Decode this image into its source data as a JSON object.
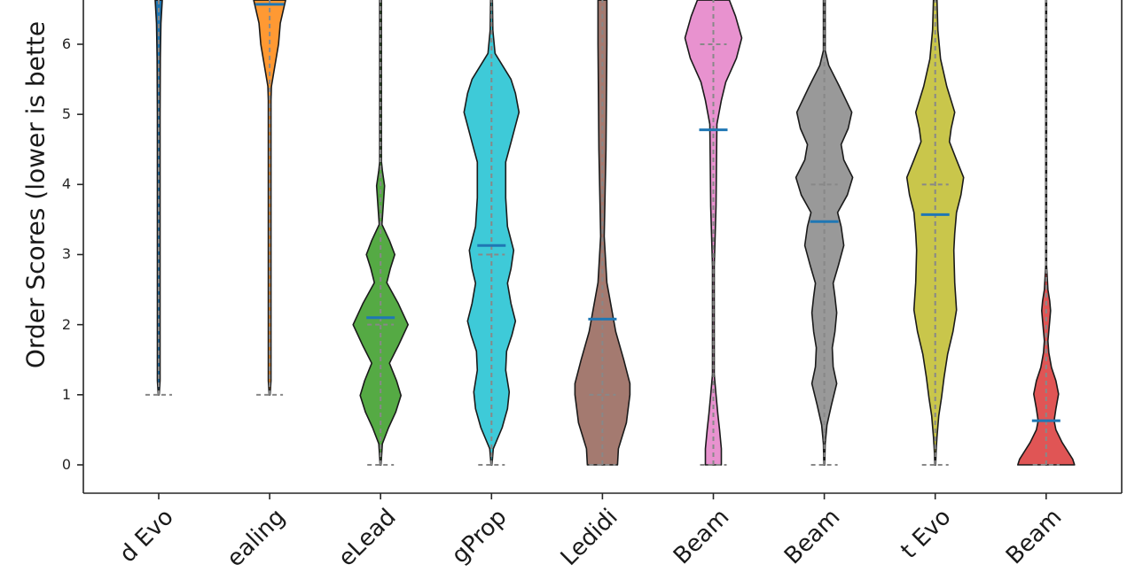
{
  "chart_data": {
    "type": "violin",
    "title": "",
    "ylabel": "Order Scores (lower is bette",
    "xlabel": "",
    "ylim": [
      -0.4,
      6.63
    ],
    "yticks": [
      0,
      1,
      2,
      3,
      4,
      5,
      6
    ],
    "grid": false,
    "legend": null,
    "categories": [
      "d Evo",
      "ealing",
      "eLead",
      "gProp",
      "Ledidi",
      "Beam",
      "Beam",
      "t Evo",
      "Beam"
    ],
    "series": [
      {
        "name": "d Evo",
        "color": "#1f77b4",
        "min": 1,
        "median": 6.7,
        "mean": 6.8,
        "profile": [
          [
            1,
            0.5
          ],
          [
            1.2,
            1.5
          ],
          [
            3,
            1.5
          ],
          [
            5,
            1.5
          ],
          [
            5.8,
            1.8
          ],
          [
            6.3,
            2.5
          ],
          [
            6.63,
            4
          ]
        ]
      },
      {
        "name": "ealing",
        "color": "#ff9933",
        "min": 1,
        "median": 6.7,
        "mean": 6.57,
        "profile": [
          [
            1,
            0.5
          ],
          [
            1.2,
            1.5
          ],
          [
            3,
            1.5
          ],
          [
            5.2,
            1.5
          ],
          [
            5.4,
            2
          ],
          [
            5.7,
            6
          ],
          [
            6.0,
            10
          ],
          [
            6.3,
            12
          ],
          [
            6.63,
            18
          ]
        ]
      },
      {
        "name": "eLead",
        "color": "#55aa44",
        "min": 0,
        "median": 2.0,
        "mean": 2.1,
        "profile": [
          [
            0,
            0.5
          ],
          [
            0.3,
            2
          ],
          [
            0.53,
            9
          ],
          [
            0.75,
            17
          ],
          [
            0.99,
            23
          ],
          [
            1.2,
            18
          ],
          [
            1.45,
            10
          ],
          [
            1.7,
            20
          ],
          [
            2.0,
            31
          ],
          [
            2.3,
            20
          ],
          [
            2.6,
            7
          ],
          [
            2.8,
            11
          ],
          [
            3.0,
            16
          ],
          [
            3.2,
            10
          ],
          [
            3.43,
            1.5
          ],
          [
            3.7,
            3
          ],
          [
            3.98,
            4.5
          ],
          [
            4.2,
            2
          ],
          [
            4.32,
            1
          ],
          [
            5.2,
            1
          ],
          [
            6.63,
            1
          ]
        ]
      },
      {
        "name": "gProp",
        "color": "#3ecad8",
        "min": 0,
        "median": 3.0,
        "mean": 3.13,
        "profile": [
          [
            0,
            0.5
          ],
          [
            0.23,
            2
          ],
          [
            0.53,
            12
          ],
          [
            0.8,
            18
          ],
          [
            1.04,
            20
          ],
          [
            1.35,
            16
          ],
          [
            1.62,
            17
          ],
          [
            1.85,
            23
          ],
          [
            2.05,
            27
          ],
          [
            2.3,
            22
          ],
          [
            2.59,
            18
          ],
          [
            2.8,
            22
          ],
          [
            3.06,
            25
          ],
          [
            3.4,
            18
          ],
          [
            3.81,
            16
          ],
          [
            4.1,
            16
          ],
          [
            4.32,
            16
          ],
          [
            4.6,
            22
          ],
          [
            5.03,
            31
          ],
          [
            5.3,
            27
          ],
          [
            5.5,
            22
          ],
          [
            5.87,
            4
          ],
          [
            6.2,
            1.5
          ],
          [
            6.63,
            1
          ]
        ]
      },
      {
        "name": "Ledidi",
        "color": "#a47a70",
        "min": 0,
        "median": 1.0,
        "mean": 2.08,
        "profile": [
          [
            0,
            17
          ],
          [
            0.23,
            18
          ],
          [
            0.6,
            27
          ],
          [
            1.0,
            31
          ],
          [
            1.16,
            31
          ],
          [
            1.5,
            24
          ],
          [
            1.9,
            15
          ],
          [
            2.25,
            10
          ],
          [
            2.6,
            5
          ],
          [
            3.26,
            2
          ],
          [
            4.5,
            4
          ],
          [
            6.0,
            5
          ],
          [
            6.63,
            5
          ]
        ]
      },
      {
        "name": "Beam",
        "color": "#e892cf",
        "min": 0,
        "median": 6.0,
        "mean": 4.78,
        "profile": [
          [
            0,
            9
          ],
          [
            0.23,
            9
          ],
          [
            0.5,
            7
          ],
          [
            0.73,
            5
          ],
          [
            1.0,
            3
          ],
          [
            1.29,
            1
          ],
          [
            2.84,
            1
          ],
          [
            3.69,
            3
          ],
          [
            4.3,
            3.5
          ],
          [
            4.86,
            4
          ],
          [
            5.2,
            9
          ],
          [
            5.46,
            14
          ],
          [
            5.8,
            26
          ],
          [
            6.09,
            32
          ],
          [
            6.4,
            25
          ],
          [
            6.63,
            18
          ]
        ]
      },
      {
        "name": "Beam",
        "color": "#999999",
        "min": 0,
        "median": 4.0,
        "mean": 3.47,
        "profile": [
          [
            0,
            0.5
          ],
          [
            0.3,
            1
          ],
          [
            0.57,
            3
          ],
          [
            0.85,
            8
          ],
          [
            1.16,
            14
          ],
          [
            1.4,
            10
          ],
          [
            1.67,
            9
          ],
          [
            1.9,
            12
          ],
          [
            2.17,
            14
          ],
          [
            2.4,
            12
          ],
          [
            2.59,
            10
          ],
          [
            2.85,
            16
          ],
          [
            3.13,
            22
          ],
          [
            3.4,
            19
          ],
          [
            3.6,
            15
          ],
          [
            3.85,
            26
          ],
          [
            4.1,
            32
          ],
          [
            4.35,
            22
          ],
          [
            4.57,
            19
          ],
          [
            4.8,
            27
          ],
          [
            5.03,
            31
          ],
          [
            5.4,
            17
          ],
          [
            5.7,
            5
          ],
          [
            5.91,
            1
          ],
          [
            6.63,
            1
          ]
        ]
      },
      {
        "name": "t Evo",
        "color": "#c9c64b",
        "min": 0,
        "median": 4.0,
        "mean": 3.57,
        "profile": [
          [
            0,
            0.5
          ],
          [
            0.2,
            1
          ],
          [
            0.4,
            2
          ],
          [
            0.7,
            4
          ],
          [
            0.95,
            7
          ],
          [
            1.25,
            10
          ],
          [
            1.58,
            14
          ],
          [
            1.9,
            20
          ],
          [
            2.21,
            24
          ],
          [
            2.6,
            22
          ],
          [
            3.06,
            21
          ],
          [
            3.3,
            22
          ],
          [
            3.6,
            24
          ],
          [
            3.85,
            29
          ],
          [
            4.1,
            32
          ],
          [
            4.35,
            24
          ],
          [
            4.61,
            16
          ],
          [
            4.8,
            18
          ],
          [
            5.03,
            22
          ],
          [
            5.4,
            13
          ],
          [
            5.79,
            6
          ],
          [
            6.2,
            3
          ],
          [
            6.63,
            2
          ]
        ]
      },
      {
        "name": "Beam",
        "color": "#e05555",
        "min": 0,
        "median": 0,
        "mean": 0.63,
        "profile": [
          [
            0,
            32
          ],
          [
            0.08,
            30
          ],
          [
            0.32,
            18
          ],
          [
            0.5,
            11
          ],
          [
            0.63,
            9
          ],
          [
            0.8,
            11
          ],
          [
            1.01,
            14
          ],
          [
            1.2,
            11
          ],
          [
            1.39,
            6
          ],
          [
            1.6,
            3
          ],
          [
            1.77,
            2
          ],
          [
            2.05,
            4
          ],
          [
            2.2,
            5
          ],
          [
            2.34,
            4
          ],
          [
            2.5,
            2
          ],
          [
            2.84,
            0.5
          ],
          [
            6.63,
            0.5
          ]
        ]
      }
    ]
  },
  "axes": {
    "ytick_labels": [
      "0",
      "1",
      "2",
      "3",
      "4",
      "5",
      "6"
    ]
  },
  "colors": {
    "mean_line": "#1f77b4",
    "median_line": "#888888",
    "outline": "#1a1a1a",
    "axis": "#262626"
  }
}
